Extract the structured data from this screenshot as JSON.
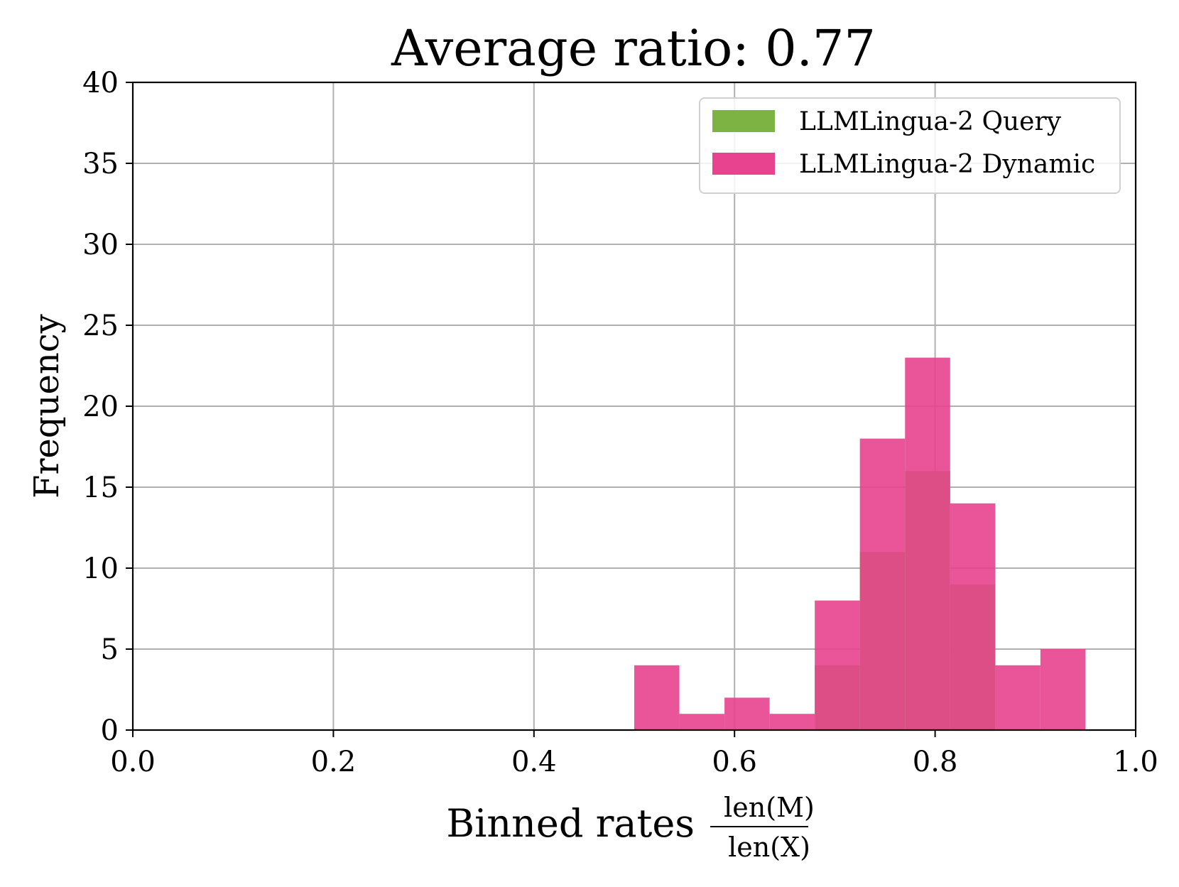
{
  "chart_data": {
    "type": "bar",
    "title": "Average ratio: 0.77",
    "xlabel": "Binned rates",
    "xlabel_fraction": {
      "numerator": "len(M)",
      "denominator": "len(X)"
    },
    "ylabel": "Frequency",
    "xlim": [
      0.0,
      1.0
    ],
    "ylim": [
      0,
      40
    ],
    "xticks": [
      "0.0",
      "0.2",
      "0.4",
      "0.6",
      "0.8",
      "1.0"
    ],
    "xtick_values": [
      0.0,
      0.2,
      0.4,
      0.6,
      0.8,
      1.0
    ],
    "yticks": [
      "0",
      "5",
      "10",
      "15",
      "20",
      "25",
      "30",
      "35",
      "40"
    ],
    "ytick_values": [
      0,
      5,
      10,
      15,
      20,
      25,
      30,
      35,
      40
    ],
    "grid": true,
    "legend_position": "top-right",
    "series": [
      {
        "name": "LLMLingua-2 Query",
        "color": "#7cb342",
        "bins": [
          {
            "x0": 0.68,
            "x1": 0.725,
            "value": 4
          },
          {
            "x0": 0.725,
            "x1": 0.77,
            "value": 11
          },
          {
            "x0": 0.77,
            "x1": 0.815,
            "value": 16
          },
          {
            "x0": 0.815,
            "x1": 0.86,
            "value": 9
          }
        ]
      },
      {
        "name": "LLMLingua-2 Dynamic",
        "color": "#e8438f",
        "bins": [
          {
            "x0": 0.5,
            "x1": 0.545,
            "value": 4
          },
          {
            "x0": 0.545,
            "x1": 0.59,
            "value": 1
          },
          {
            "x0": 0.59,
            "x1": 0.635,
            "value": 2
          },
          {
            "x0": 0.635,
            "x1": 0.68,
            "value": 1
          },
          {
            "x0": 0.68,
            "x1": 0.725,
            "value": 8
          },
          {
            "x0": 0.725,
            "x1": 0.77,
            "value": 18
          },
          {
            "x0": 0.77,
            "x1": 0.815,
            "value": 23
          },
          {
            "x0": 0.815,
            "x1": 0.86,
            "value": 14
          },
          {
            "x0": 0.86,
            "x1": 0.905,
            "value": 4
          },
          {
            "x0": 0.905,
            "x1": 0.95,
            "value": 5
          }
        ]
      }
    ]
  }
}
